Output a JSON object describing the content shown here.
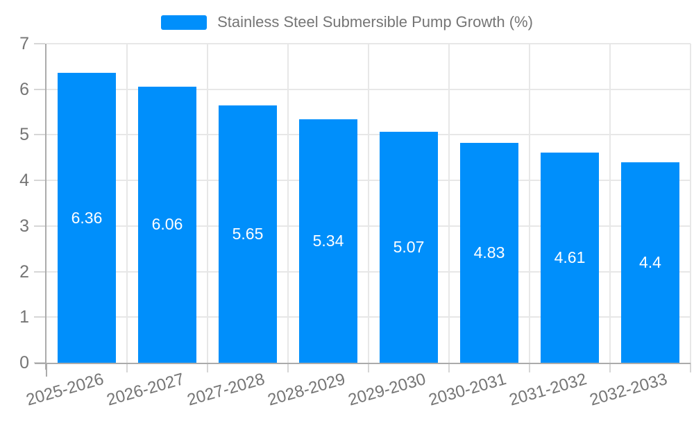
{
  "legend": {
    "label": "Stainless Steel Submersible Pump Growth (%)"
  },
  "colors": {
    "bar": "#008FFB",
    "axis_line": "#ababab",
    "gridline": "#e7e7e7",
    "tick": "#d6d6d6",
    "tick_label": "#757575",
    "value_label": "#ffffff",
    "background": "#ffffff"
  },
  "chart_data": {
    "type": "bar",
    "title": "Stainless Steel Submersible Pump Growth (%)",
    "categories": [
      "2025-2026",
      "2026-2027",
      "2027-2028",
      "2028-2029",
      "2029-2030",
      "2030-2031",
      "2031-2032",
      "2032-2033"
    ],
    "values": [
      6.36,
      6.06,
      5.65,
      5.34,
      5.07,
      4.83,
      4.61,
      4.4
    ],
    "value_labels": [
      "6.36",
      "6.06",
      "5.65",
      "5.34",
      "5.07",
      "4.83",
      "4.61",
      "4.4"
    ],
    "xlabel": "",
    "ylabel": "",
    "ylim": [
      0,
      7
    ],
    "yticks": [
      0,
      1,
      2,
      3,
      4,
      5,
      6,
      7
    ],
    "grid": true,
    "legend_position": "top-center",
    "bar_color": "#008FFB"
  }
}
